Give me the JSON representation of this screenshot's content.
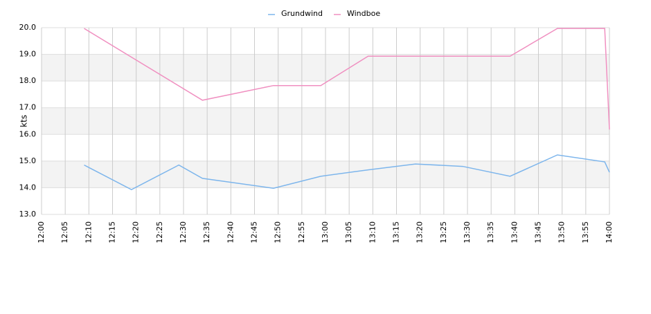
{
  "chart_data": {
    "type": "line",
    "y_label": "kts",
    "xlim": [
      "12:00",
      "14:00"
    ],
    "xticks": [
      "12:00",
      "12:05",
      "12:10",
      "12:15",
      "12:20",
      "12:25",
      "12:30",
      "12:35",
      "12:40",
      "12:45",
      "12:50",
      "12:55",
      "13:00",
      "13:05",
      "13:10",
      "13:15",
      "13:20",
      "13:25",
      "13:30",
      "13:35",
      "13:40",
      "13:45",
      "13:50",
      "13:55",
      "14:00"
    ],
    "ylim": [
      13,
      20
    ],
    "yticks": [
      {
        "value": 13,
        "label": "13.0"
      },
      {
        "value": 14,
        "label": "14.0"
      },
      {
        "value": 15,
        "label": "15.0"
      },
      {
        "value": 16,
        "label": "16.0"
      },
      {
        "value": 17,
        "label": "17.0"
      },
      {
        "value": 18,
        "label": "18.0"
      },
      {
        "value": 19,
        "label": "19.0"
      },
      {
        "value": 20,
        "label": "20.0"
      }
    ],
    "grid": true,
    "legend": "top",
    "series": [
      {
        "name": "Grundwind",
        "color": "#7cb5ec",
        "x": [
          "12:09",
          "12:19",
          "12:29",
          "12:34",
          "12:49",
          "12:59",
          "13:09",
          "13:19",
          "13:29",
          "13:39",
          "13:49",
          "13:59",
          "14:00"
        ],
        "values": [
          14.85,
          13.93,
          14.85,
          14.35,
          13.98,
          14.43,
          14.67,
          14.89,
          14.8,
          14.43,
          15.23,
          14.97,
          14.58
        ]
      },
      {
        "name": "Windboe",
        "color": "#f08fc0",
        "x": [
          "12:09",
          "12:34",
          "12:49",
          "12:59",
          "13:09",
          "13:39",
          "13:49",
          "13:59",
          "14:00"
        ],
        "values": [
          19.97,
          17.28,
          17.83,
          17.83,
          18.93,
          18.93,
          19.97,
          19.97,
          16.18
        ]
      }
    ]
  }
}
